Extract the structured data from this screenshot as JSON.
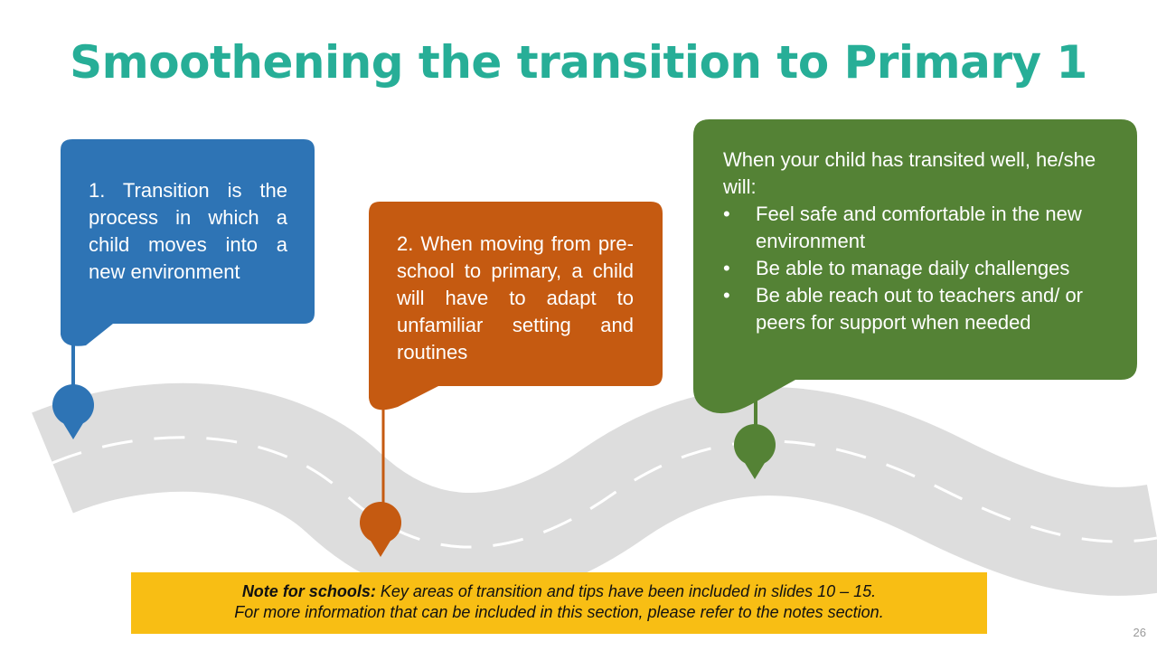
{
  "slide": {
    "title": "Smoothening the transition to Primary 1",
    "page_number": "26"
  },
  "callouts": [
    {
      "text": "1. Transition is the process in which a child moves into a new environment",
      "color": "#2e74b5"
    },
    {
      "text": "2. When moving from pre-school to primary, a child will have to adapt to unfamiliar setting and routines",
      "color": "#c55a11"
    },
    {
      "intro": "When your child has transited well, he/she will:",
      "bullets": [
        "Feel safe and comfortable in the new environment",
        "Be able to manage daily challenges",
        "Be able reach out to teachers and/ or peers for support when needed"
      ],
      "color": "#548235"
    }
  ],
  "note": {
    "label": "Note for schools:",
    "line1": " Key areas of transition and tips have been included in slides 10 – 15.",
    "line2": "For more information that can be included in this section, please refer to the notes section."
  },
  "colors": {
    "title": "#27ae97",
    "road": "#dddddd",
    "note_bg": "#f8be14"
  }
}
